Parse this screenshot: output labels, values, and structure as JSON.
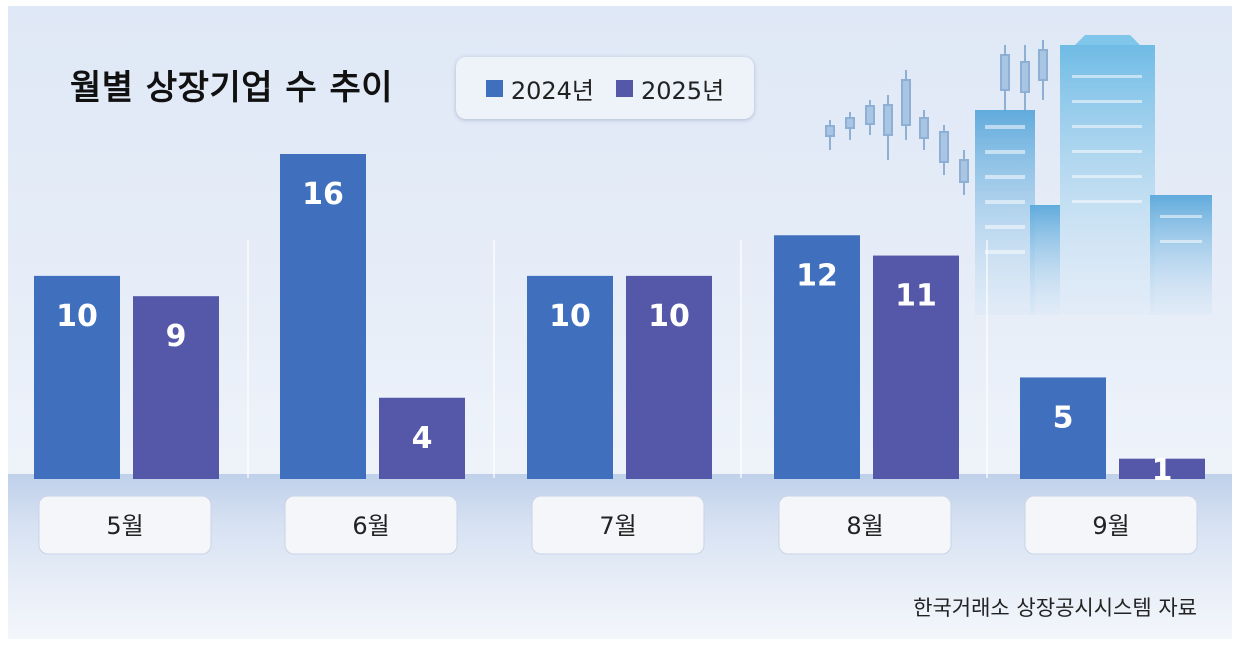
{
  "chart_data": {
    "type": "bar",
    "title": "월별 상장기업 수 추이",
    "categories": [
      "5월",
      "6월",
      "7월",
      "8월",
      "9월"
    ],
    "series": [
      {
        "name": "2024년",
        "color": "#3f6fbd",
        "values": [
          10,
          16,
          10,
          12,
          5
        ]
      },
      {
        "name": "2025년",
        "color": "#5557a8",
        "values": [
          9,
          4,
          10,
          11,
          1
        ]
      }
    ],
    "ylim": [
      0,
      16
    ],
    "xlabel": "",
    "ylabel": "",
    "legend_position": "top-center",
    "grid": false
  },
  "source_note": "한국거래소 상장공시시스템 자료"
}
